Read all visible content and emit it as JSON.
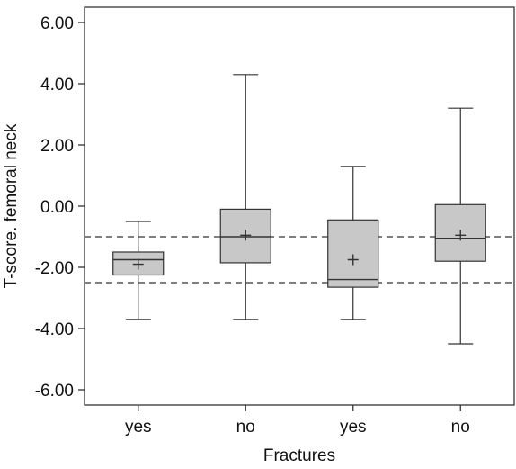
{
  "chart_data": {
    "type": "boxplot",
    "title": "",
    "xlabel": "Fractures",
    "ylabel": "T-score. femoral neck",
    "ylim": [
      -6.5,
      6.5
    ],
    "yticks": [
      "6.00",
      "4.00",
      "2.00",
      "0.00",
      "-2.00",
      "-4.00",
      "-6.00"
    ],
    "ytick_values": [
      6,
      4,
      2,
      0,
      -2,
      -4,
      -6
    ],
    "categories": [
      "yes",
      "no",
      "yes",
      "no"
    ],
    "boxes": [
      {
        "min": -3.7,
        "q1": -2.25,
        "median": -1.75,
        "q3": -1.5,
        "max": -0.5,
        "mean": -1.9
      },
      {
        "min": -3.7,
        "q1": -1.85,
        "median": -1.0,
        "q3": -0.1,
        "max": 4.3,
        "mean": -0.95
      },
      {
        "min": -3.7,
        "q1": -2.65,
        "median": -2.4,
        "q3": -0.45,
        "max": 1.3,
        "mean": -1.75
      },
      {
        "min": -4.5,
        "q1": -1.8,
        "median": -1.05,
        "q3": 0.05,
        "max": 3.2,
        "mean": -0.95
      }
    ],
    "reference_lines": [
      -1.0,
      -2.5
    ],
    "grid": false,
    "colors": {
      "box_fill": "#c8c8c8",
      "stroke": "#333333",
      "text": "#111111"
    }
  }
}
